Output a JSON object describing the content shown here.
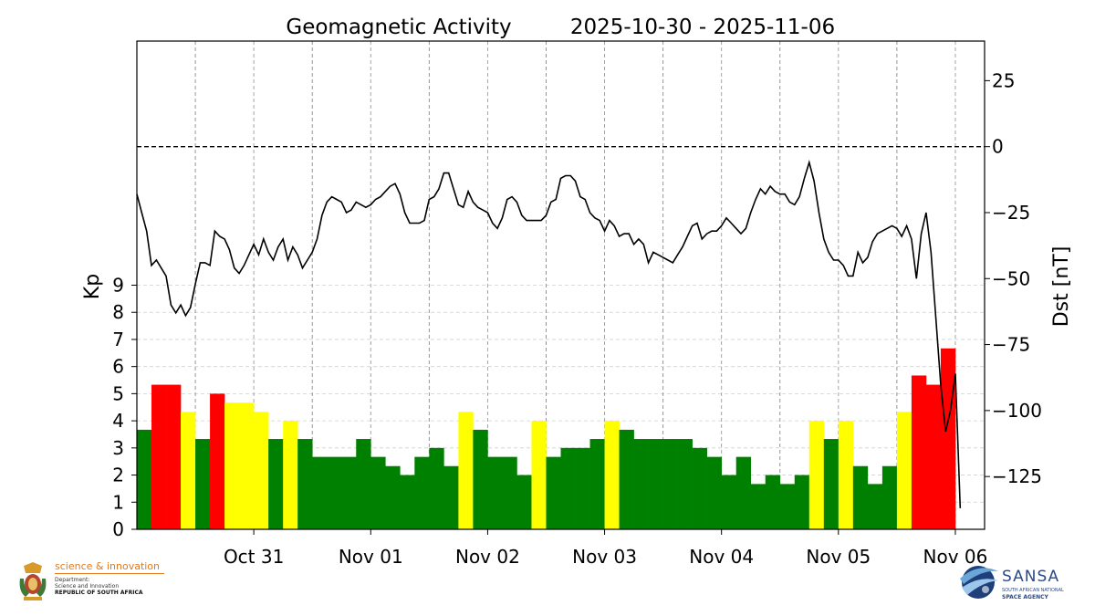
{
  "header": {
    "title": "Geomagnetic Activity",
    "date_range": "2025-10-30 - 2025-11-06"
  },
  "chart_data": {
    "type": "bar+line",
    "title": "Geomagnetic Activity",
    "date_range": "2025-10-30 - 2025-11-06",
    "x_range": [
      "2025-10-30T00:00",
      "2025-11-06T06:00"
    ],
    "x_ticks": [
      {
        "date": "2025-10-31",
        "label": "Oct 31"
      },
      {
        "date": "2025-11-01",
        "label": "Nov 01"
      },
      {
        "date": "2025-11-02",
        "label": "Nov 02"
      },
      {
        "date": "2025-11-03",
        "label": "Nov 03"
      },
      {
        "date": "2025-11-04",
        "label": "Nov 04"
      },
      {
        "date": "2025-11-05",
        "label": "Nov 05"
      },
      {
        "date": "2025-11-06",
        "label": "Nov 06"
      }
    ],
    "left_axis": {
      "label": "Kp",
      "ticks": [
        0,
        1,
        2,
        3,
        4,
        5,
        6,
        7,
        8,
        9
      ],
      "range": [
        0,
        18
      ]
    },
    "right_axis": {
      "label": "Dst [nT]",
      "ticks": [
        25,
        0,
        -25,
        -50,
        -75,
        -100,
        -125
      ],
      "range": [
        -145,
        40
      ]
    },
    "kp_colors": {
      "quiet": "#008000",
      "unsettled": "#ffff00",
      "storm": "#ff0000"
    },
    "kp_interval_hours": 3,
    "kp_start": "2025-10-30T00:00",
    "kp_values": [
      3.67,
      5.33,
      5.33,
      4.33,
      3.33,
      5.0,
      4.67,
      4.67,
      4.33,
      3.33,
      4.0,
      3.33,
      2.67,
      2.67,
      2.67,
      3.33,
      2.67,
      2.33,
      2.0,
      2.67,
      3.0,
      2.33,
      4.33,
      3.67,
      2.67,
      2.67,
      2.0,
      4.0,
      2.67,
      3.0,
      3.0,
      3.33,
      4.0,
      3.67,
      3.33,
      3.33,
      3.33,
      3.33,
      3.0,
      2.67,
      2.0,
      2.67,
      1.67,
      2.0,
      1.67,
      2.0,
      4.0,
      3.33,
      4.0,
      2.33,
      1.67,
      2.33,
      4.33,
      5.67,
      5.33,
      6.67
    ],
    "dst_interval_hours": 1,
    "dst_start": "2025-10-30T00:00",
    "dst_values": [
      -18,
      -25,
      -32,
      -45,
      -43,
      -46,
      -49,
      -60,
      -63,
      -60,
      -64,
      -61,
      -52,
      -44,
      -44,
      -45,
      -32,
      -34,
      -35,
      -39,
      -46,
      -48,
      -45,
      -41,
      -37,
      -41,
      -35,
      -40,
      -43,
      -38,
      -35,
      -43,
      -38,
      -41,
      -46,
      -43,
      -40,
      -35,
      -26,
      -21,
      -19,
      -20,
      -21,
      -25,
      -24,
      -21,
      -22,
      -23,
      -22,
      -20,
      -19,
      -17,
      -15,
      -14,
      -18,
      -25,
      -29,
      -29,
      -29,
      -28,
      -20,
      -19,
      -16,
      -10,
      -10,
      -16,
      -22,
      -23,
      -17,
      -21,
      -23,
      -24,
      -25,
      -29,
      -31,
      -27,
      -20,
      -19,
      -21,
      -26,
      -28,
      -28,
      -28,
      -28,
      -26,
      -21,
      -20,
      -12,
      -11,
      -11,
      -13,
      -19,
      -20,
      -25,
      -27,
      -28,
      -32,
      -28,
      -30,
      -34,
      -33,
      -33,
      -37,
      -35,
      -37,
      -44,
      -40,
      -41,
      -42,
      -43,
      -44,
      -41,
      -38,
      -34,
      -30,
      -29,
      -35,
      -33,
      -32,
      -32,
      -30,
      -27,
      -29,
      -31,
      -33,
      -31,
      -25,
      -20,
      -16,
      -18,
      -15,
      -17,
      -18,
      -18,
      -21,
      -22,
      -19,
      -12,
      -6,
      -13,
      -25,
      -35,
      -40,
      -43,
      -43,
      -45,
      -49,
      -49,
      -40,
      -44,
      -42,
      -36,
      -33,
      -32,
      -31,
      -30,
      -31,
      -34,
      -30,
      -35,
      -50,
      -33,
      -25,
      -40,
      -65,
      -90,
      -108,
      -100,
      -86,
      -137
    ]
  },
  "logos": {
    "dept": {
      "line1": "science & innovation",
      "line2": "Department:",
      "line3": "Science and Innovation",
      "line4": "REPUBLIC OF SOUTH AFRICA"
    },
    "sansa": {
      "name": "SANSA",
      "sub1": "SOUTH AFRICAN NATIONAL",
      "sub2": "SPACE AGENCY"
    }
  }
}
